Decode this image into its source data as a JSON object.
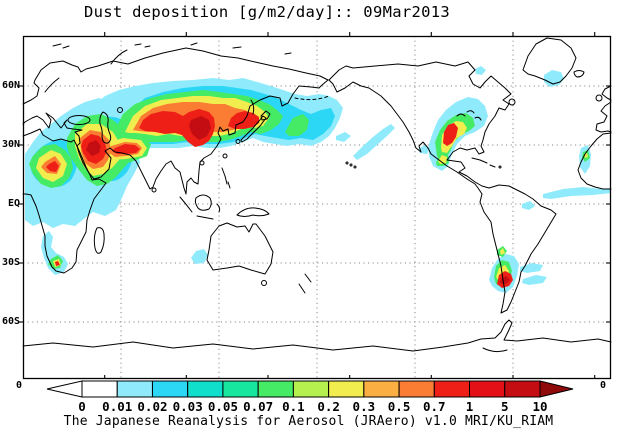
{
  "title": "Dust deposition [g/m2/day]:: 09Mar2013",
  "caption": "The Japanese Reanalysis for Aerosol (JRAero) v1.0 MRI/KU_RIAM",
  "map": {
    "lat_labels": [
      "60N",
      "30N",
      "EQ",
      "30S",
      "60S"
    ],
    "corner_left": "0",
    "corner_right": "0"
  },
  "colorbar": {
    "tick_labels": [
      "0",
      "0.01",
      "0.02",
      "0.03",
      "0.05",
      "0.07",
      "0.1",
      "0.2",
      "0.3",
      "0.5",
      "0.7",
      "1",
      "5",
      "10"
    ],
    "colors": [
      "#FFFFFF",
      "#8FEBFC",
      "#2BD7F5",
      "#10E0CB",
      "#17E79E",
      "#45EB64",
      "#B6F04F",
      "#F1ED4E",
      "#FBAE42",
      "#FA7D33",
      "#EE1F16",
      "#E41017",
      "#C40D12"
    ]
  },
  "palette": {
    "cyan_light": "#8FEBFC",
    "cyan": "#2BD7F5",
    "teal": "#10E0CB",
    "spring": "#17E79E",
    "green": "#45EB64",
    "yellow_green": "#B6F04F",
    "yellow": "#F1ED4E",
    "orange_light": "#FBAE42",
    "orange": "#FA7D33",
    "red": "#EE1F16",
    "red_deep": "#E41017",
    "dark_red": "#C40D12",
    "over_arrow": "#8F0A0A",
    "under": "#FFFFFF"
  },
  "chart_data": {
    "type": "heatmap",
    "subtype": "global-map-shaded-contours",
    "title": "Dust deposition [g/m2/day]:: 09Mar2013",
    "date": "09Mar2013",
    "units": "g/m2/day",
    "projection": "cylindrical equidistant, longitude 0E-360E (Pacific centered)",
    "levels": [
      0,
      0.01,
      0.02,
      0.03,
      0.05,
      0.07,
      0.1,
      0.2,
      0.3,
      0.5,
      0.7,
      1,
      5,
      10
    ],
    "level_colors": [
      "#FFFFFF",
      "#8FEBFC",
      "#2BD7F5",
      "#10E0CB",
      "#17E79E",
      "#45EB64",
      "#B6F04F",
      "#F1ED4E",
      "#FBAE42",
      "#FA7D33",
      "#EE1F16",
      "#E41017",
      "#C40D12",
      "#8F0A0A"
    ],
    "lat_gridlines_deg": [
      60,
      30,
      0,
      -30,
      -60
    ],
    "lon_gridlines_deg": [
      60,
      120,
      180,
      240,
      300
    ],
    "grid": "dotted",
    "legend_position": "bottom horizontal color bar with underflow/overflow arrows",
    "regions": [
      {
        "name": "Sahara / West Africa",
        "approx_location": "0-25E, 10-30N",
        "peak_bin": "0.7-1"
      },
      {
        "name": "Middle East (Syria-Iraq-Arabia)",
        "approx_location": "35-50E, 15-35N",
        "peak_bin": "5-10"
      },
      {
        "name": "Pakistan / NW India band",
        "approx_location": "55-75E, 25-30N",
        "peak_bin": "1-5"
      },
      {
        "name": "Central-East Asia (Taklamakan-Gobi-NE China)",
        "approx_location": "70-125E, 30-45N",
        "peak_bin": ">10"
      },
      {
        "name": "Korea / Japan / NW Pacific outflow",
        "approx_location": "125-180E, 25-50N",
        "peak_bin": "1-5"
      },
      {
        "name": "Central North Pacific streaks",
        "approx_location": "195-230E, 15-25N",
        "peak_bin": "0.01-0.03"
      },
      {
        "name": "Central United States plume",
        "approx_location": "255-265E, 30-45N",
        "peak_bin": "1-5"
      },
      {
        "name": "South of Greenland",
        "approx_location": "320-330E, 55-60N",
        "peak_bin": "0.01-0.03"
      },
      {
        "name": "NW African coast (Atlantic)",
        "approx_location": "342-348E, 10-28N",
        "peak_bin": "0.2-0.3"
      },
      {
        "name": "Tropical Atlantic streak",
        "approx_location": "305-360E, 0-8N",
        "peak_bin": "0.01-0.02"
      },
      {
        "name": "Southern Africa (Namibia / South Africa)",
        "approx_location": "14-28E, 18-35S",
        "peak_bin": "0.7-1"
      },
      {
        "name": "Patagonia (Argentina)",
        "approx_location": "290-305E, 35-45S",
        "peak_bin": "1-5"
      },
      {
        "name": "NW Australia coast",
        "approx_location": "112-122E, 15-25S",
        "peak_bin": "0.01-0.03"
      }
    ]
  }
}
